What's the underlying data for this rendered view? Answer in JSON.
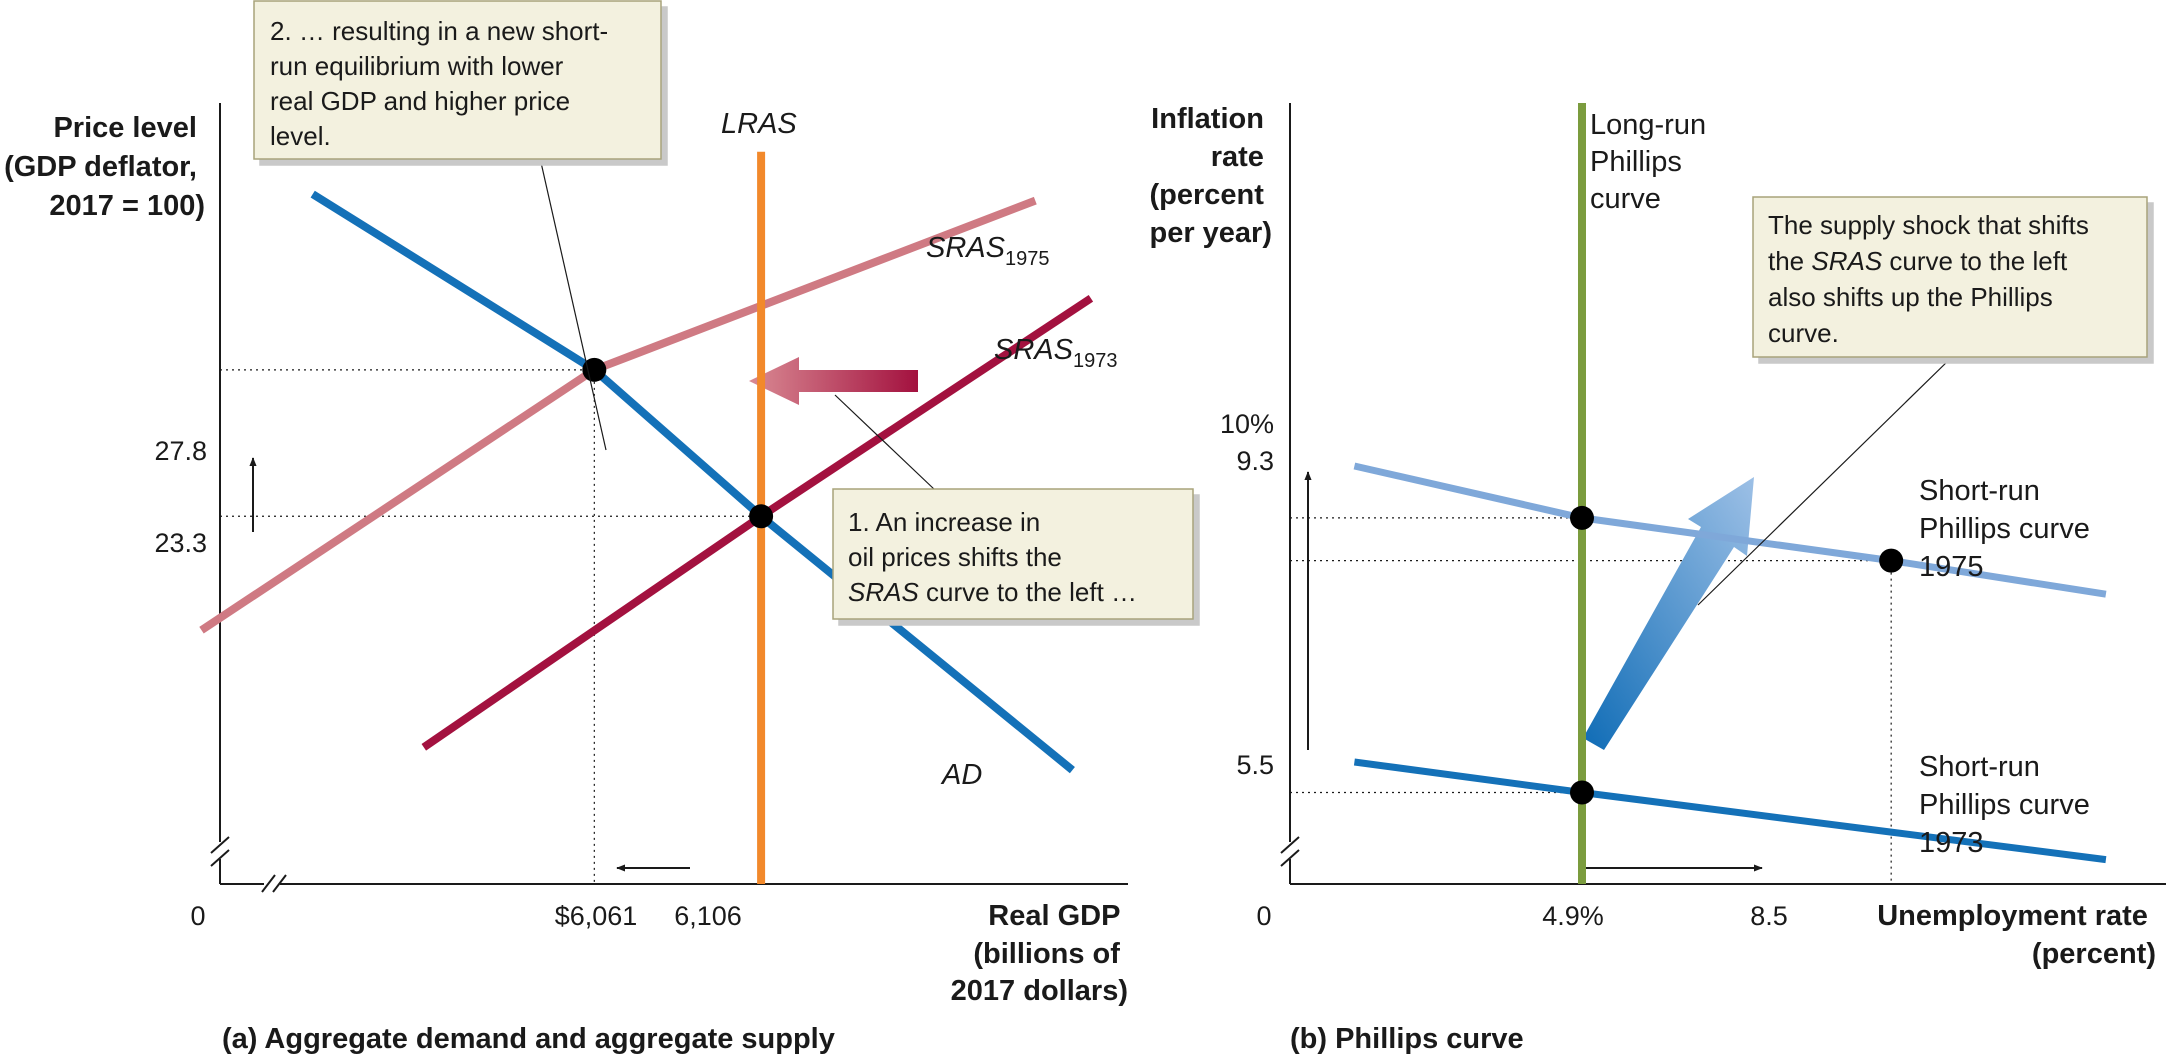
{
  "colors": {
    "ad": "#1471b8",
    "lras": "#f2892b",
    "sras_1973": "#a3113f",
    "sras_1975": "#cf7a83",
    "lrpc": "#7b9c3e",
    "srpc_1973": "#1471b8",
    "srpc_1975": "#7fa8d9",
    "callout_bg": "#f3f1df",
    "callout_border": "#a8a37a"
  },
  "chart_data": [
    {
      "type": "line",
      "caption": "(a) Aggregate demand and aggregate supply",
      "ylabel": [
        "Price level",
        "(GDP deflator,",
        "2017 = 100)"
      ],
      "xlabel": [
        "Real GDP",
        "(billions of",
        "2017 dollars)"
      ],
      "origin_label": "0",
      "x_ticks": [
        "$6,061",
        "6,106"
      ],
      "y_ticks": [
        "27.8",
        "23.3"
      ],
      "axis_break": true,
      "series": [
        {
          "name": "AD",
          "points": [
            [
              5985,
              33.2
            ],
            [
              6061,
              27.8
            ],
            [
              6106,
              23.3
            ],
            [
              6190,
              15.5
            ]
          ]
        },
        {
          "name": "LRAS",
          "points": [
            [
              6106,
              34.5
            ],
            [
              6106,
              12.0
            ]
          ]
        },
        {
          "name": "SRAS",
          "sub": "1973",
          "points": [
            [
              6015,
              16.2
            ],
            [
              6106,
              23.3
            ],
            [
              6195,
              30.0
            ]
          ]
        },
        {
          "name": "SRAS",
          "sub": "1975",
          "points": [
            [
              5955,
              19.8
            ],
            [
              6061,
              27.8
            ],
            [
              6180,
              33.0
            ]
          ]
        }
      ],
      "equilibria": [
        [
          6061,
          27.8
        ],
        [
          6106,
          23.3
        ]
      ],
      "annotations": [
        {
          "lines": [
            "2. … resulting in a new short-",
            "run equilibrium with lower",
            "real GDP and higher price",
            "level."
          ]
        },
        {
          "lines": [
            "1. An increase in",
            "oil prices shifts the",
            "SRAS curve to the left …"
          ]
        }
      ],
      "xlim": [
        5960,
        6205
      ],
      "ylim": [
        12,
        36
      ]
    },
    {
      "type": "line",
      "caption": "(b) Phillips curve",
      "ylabel": [
        "Inflation",
        "rate",
        "(percent",
        "per year)"
      ],
      "xlabel": [
        "Unemployment rate",
        "(percent)"
      ],
      "origin_label": "0",
      "x_ticks": [
        "4.9%",
        "8.5"
      ],
      "y_ticks": [
        "10%",
        "9.3",
        "5.5"
      ],
      "axis_break": true,
      "series": [
        {
          "name": "Long-run Phillips curve",
          "lines": [
            "Long-run",
            "Phillips",
            "curve"
          ],
          "points": [
            [
              4.9,
              16.8
            ],
            [
              4.9,
              4.0
            ]
          ]
        },
        {
          "name": "Short-run Phillips curve 1975",
          "lines": [
            "Short-run",
            "Phillips curve",
            "1975"
          ],
          "points": [
            [
              2.25,
              10.85
            ],
            [
              4.9,
              10.0
            ],
            [
              8.5,
              9.3
            ],
            [
              11.0,
              8.75
            ]
          ]
        },
        {
          "name": "Short-run Phillips curve 1973",
          "lines": [
            "Short-run",
            "Phillips curve",
            "1973"
          ],
          "points": [
            [
              2.25,
              6.0
            ],
            [
              4.9,
              5.5
            ],
            [
              8.5,
              4.85
            ],
            [
              11.0,
              4.4
            ]
          ]
        }
      ],
      "equilibria": [
        [
          4.9,
          10.0
        ],
        [
          8.5,
          9.3
        ],
        [
          4.9,
          5.5
        ]
      ],
      "annotations": [
        {
          "lines": [
            "The supply shock that shifts",
            "the SRAS curve to the left",
            "also shifts up the Phillips",
            "curve."
          ]
        }
      ],
      "xlim": [
        1.5,
        11.7
      ],
      "ylim": [
        4.0,
        16.8
      ]
    }
  ]
}
